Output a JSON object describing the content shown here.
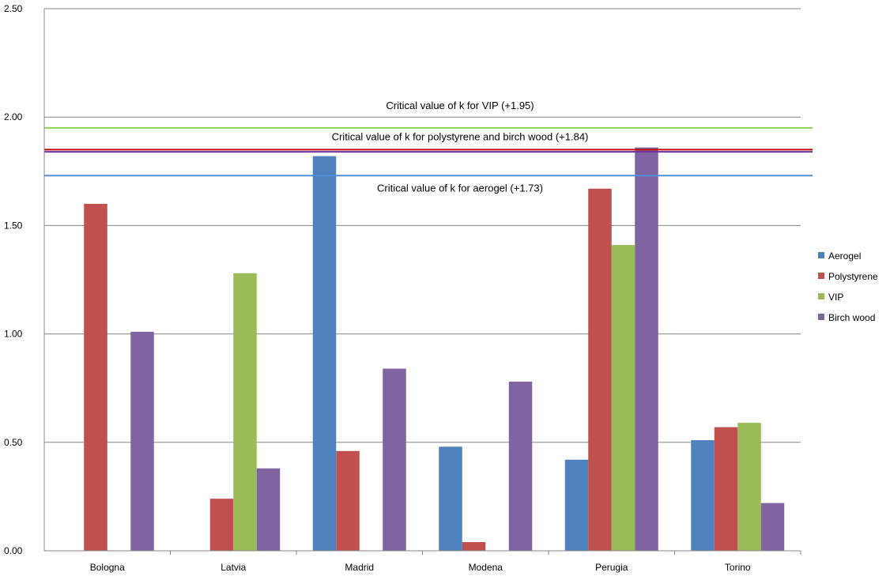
{
  "chart_data": {
    "type": "bar",
    "categories": [
      "Bologna",
      "Latvia",
      "Madrid",
      "Modena",
      "Perugia",
      "Torino"
    ],
    "series": [
      {
        "name": "Aerogel",
        "color": "#4f81bd",
        "values": [
          0,
          0,
          1.82,
          0.48,
          0.42,
          0.51
        ]
      },
      {
        "name": "Polystyrene",
        "color": "#c0504d",
        "values": [
          1.6,
          0.24,
          0.46,
          0.04,
          1.67,
          0.57
        ]
      },
      {
        "name": "VIP",
        "color": "#9bbb59",
        "values": [
          0,
          1.28,
          0,
          0,
          1.41,
          0.59
        ]
      },
      {
        "name": "Birch wood",
        "color": "#8064a2",
        "values": [
          1.01,
          0.38,
          0.84,
          0.78,
          1.86,
          0.22
        ]
      }
    ],
    "reference_lines": [
      {
        "value": 1.95,
        "color": "#92d050",
        "label": "Critical value of k for VIP (+1.95)"
      },
      {
        "value": 1.85,
        "color": "#c00000",
        "label": "Critical value of k for polystyrene and birch wood (+1.84)"
      },
      {
        "value": 1.84,
        "color": "#7030a0",
        "label": ""
      },
      {
        "value": 1.73,
        "color": "#558ed5",
        "label": "Critical value of k for aerogel (+1.73)"
      }
    ],
    "ylim": [
      0,
      2.5
    ],
    "yticks": [
      "0.00",
      "0.50",
      "1.00",
      "1.50",
      "2.00",
      "2.50"
    ],
    "grid": true,
    "legend_position": "right",
    "gridline_color": "#868686",
    "axis_color": "#868686"
  }
}
